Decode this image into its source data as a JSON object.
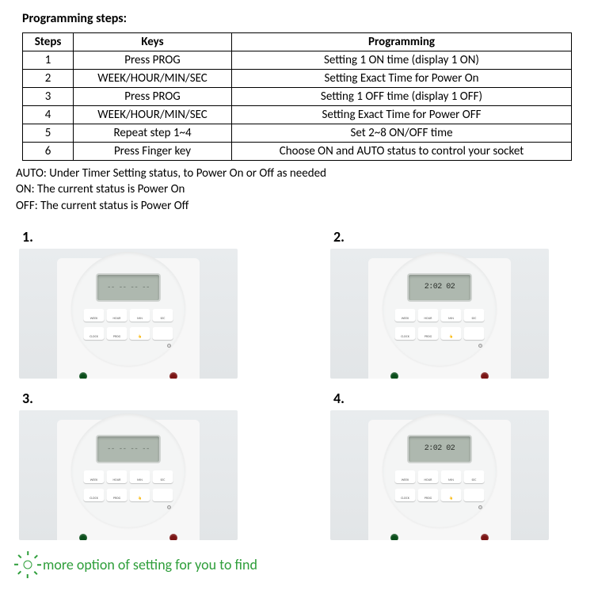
{
  "heading": "Programming steps:",
  "table": {
    "columns": [
      "Steps",
      "Keys",
      "Programming"
    ],
    "rows": [
      [
        "1",
        "Press PROG",
        "Setting 1 ON time (display 1 ON)"
      ],
      [
        "2",
        "WEEK/HOUR/MIN/SEC",
        "Setting Exact Time for Power On"
      ],
      [
        "3",
        "Press PROG",
        "Setting 1 OFF time (display 1 OFF)"
      ],
      [
        "4",
        "WEEK/HOUR/MIN/SEC",
        "Setting Exact Time for Power OFF"
      ],
      [
        "5",
        "Repeat step 1~4",
        "Set 2~8 ON/OFF time"
      ],
      [
        "6",
        "Press Finger key",
        "Choose ON and AUTO status to control your socket"
      ]
    ]
  },
  "notes": [
    "AUTO: Under Timer Setting status, to Power On or Off as needed",
    "ON: The current status is Power On",
    "OFF: The current status is Power Off"
  ],
  "photos": [
    {
      "num": "1.",
      "lcd": "-- -- -- --",
      "blank": true
    },
    {
      "num": "2.",
      "lcd": "2:02 02",
      "blank": false
    },
    {
      "num": "3.",
      "lcd": "-- -- -- --",
      "blank": true
    },
    {
      "num": "4.",
      "lcd": "2:02 02",
      "blank": false
    }
  ],
  "button_labels_row1": [
    "WEEK",
    "HOUR",
    "MIN",
    "SEC"
  ],
  "button_labels_row2": [
    "CLOCK",
    "PROG",
    "👆",
    ""
  ],
  "footer_text": "more option of setting for you to find",
  "colors": {
    "accent_green": "#2e9e3a",
    "lcd_bg": "#aeb8af",
    "photo_bg": "#e6e9eb"
  }
}
